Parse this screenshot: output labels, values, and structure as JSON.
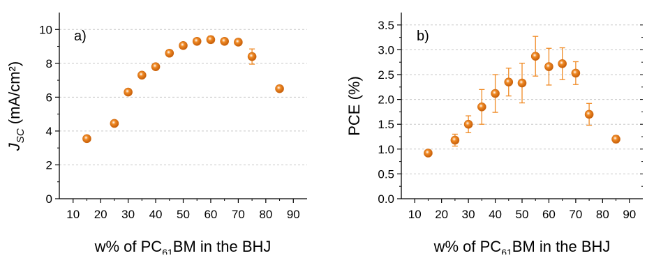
{
  "chart_data": [
    {
      "type": "scatter",
      "panel_label": "a)",
      "xlabel": "w% of PC61BM in the BHJ",
      "xlabel_parts": {
        "before": "w% of PC",
        "sub": "61",
        "after": "BM in the BHJ"
      },
      "ylabel": "JSC (mA/cm²)",
      "ylabel_parts": {
        "main": "J",
        "sub": "SC",
        "after": " (mA/cm²)"
      },
      "xlim": [
        5,
        95
      ],
      "ylim": [
        0,
        11
      ],
      "xticks": [
        10,
        20,
        30,
        40,
        50,
        60,
        70,
        80,
        90
      ],
      "xtick_labels": [
        "10",
        "20",
        "30",
        "40",
        "50",
        "60",
        "70",
        "80",
        "90"
      ],
      "yticks": [
        0,
        2,
        4,
        6,
        8,
        10
      ],
      "ytick_labels": [
        "0",
        "2",
        "4",
        "6",
        "8",
        "10"
      ],
      "grid": "horizontal-dashed",
      "marker_color": "#f08a24",
      "series": [
        {
          "x": [
            15,
            25,
            30,
            35,
            40,
            45,
            50,
            55,
            60,
            65,
            70,
            75,
            85
          ],
          "y": [
            3.55,
            4.45,
            6.3,
            7.3,
            7.8,
            8.6,
            9.05,
            9.3,
            9.4,
            9.3,
            9.25,
            8.4,
            6.5
          ],
          "err": [
            0.1,
            0.1,
            0.15,
            0.15,
            0.1,
            0.1,
            0.1,
            0.1,
            0.2,
            0.15,
            0.15,
            0.45,
            0.1
          ]
        }
      ]
    },
    {
      "type": "scatter",
      "panel_label": "b)",
      "xlabel": "w% of PC61BM in the BHJ",
      "xlabel_parts": {
        "before": "w% of PC",
        "sub": "61",
        "after": "BM in the BHJ"
      },
      "ylabel": "PCE (%)",
      "ylabel_parts": {
        "main": "PCE (%)",
        "sub": "",
        "after": ""
      },
      "xlim": [
        5,
        95
      ],
      "ylim": [
        0,
        3.75
      ],
      "xticks": [
        10,
        20,
        30,
        40,
        50,
        60,
        70,
        80,
        90
      ],
      "xtick_labels": [
        "10",
        "20",
        "30",
        "40",
        "50",
        "60",
        "70",
        "80",
        "90"
      ],
      "yticks": [
        0,
        0.5,
        1.0,
        1.5,
        2.0,
        2.5,
        3.0,
        3.5
      ],
      "ytick_labels": [
        "0.0",
        "0.5",
        "1.0",
        "1.5",
        "2.0",
        "2.5",
        "3.0",
        "3.5"
      ],
      "grid": "horizontal-dashed",
      "marker_color": "#f08a24",
      "series": [
        {
          "x": [
            15,
            25,
            30,
            35,
            40,
            45,
            50,
            55,
            60,
            65,
            70,
            75,
            85
          ],
          "y": [
            0.92,
            1.18,
            1.5,
            1.85,
            2.12,
            2.35,
            2.33,
            2.87,
            2.66,
            2.72,
            2.53,
            1.7,
            1.2
          ],
          "err": [
            0.05,
            0.12,
            0.17,
            0.35,
            0.38,
            0.28,
            0.4,
            0.4,
            0.37,
            0.32,
            0.23,
            0.22,
            0.07
          ]
        }
      ]
    }
  ]
}
